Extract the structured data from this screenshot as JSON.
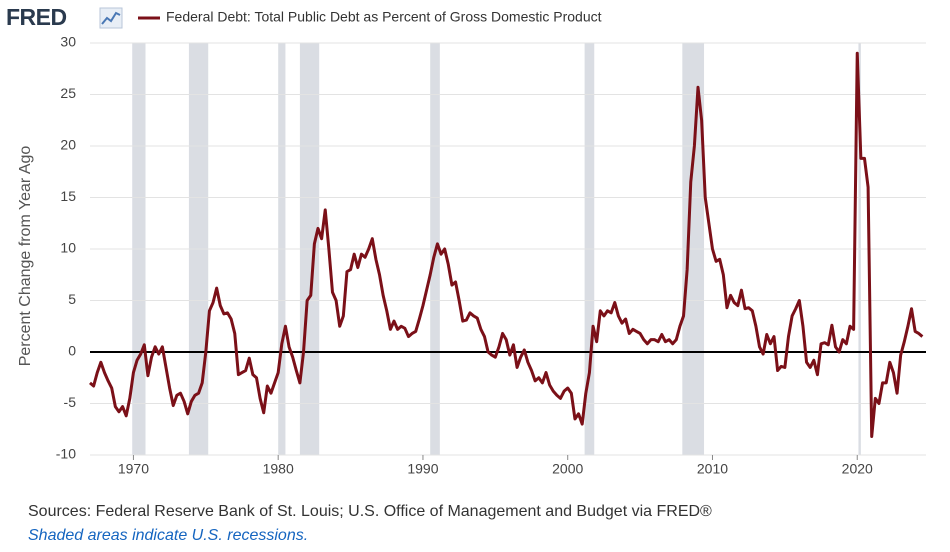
{
  "chart_data": {
    "type": "line",
    "logo": "FRED",
    "sources": "Sources: Federal Reserve Bank of St. Louis; U.S. Office of Management and Budget via FRED®",
    "note": "Shaded areas indicate U.S. recessions.",
    "ylabel": "Percent Change from Year Ago",
    "xlim": [
      1967,
      2024.75
    ],
    "ylim": [
      -10,
      30
    ],
    "xticks": [
      1970,
      1980,
      1990,
      2000,
      2010,
      2020
    ],
    "yticks": [
      30,
      25,
      20,
      15,
      10,
      5,
      0,
      -5,
      -10
    ],
    "grid": true,
    "recession_color": "#dadde3",
    "recessions": [
      [
        1969.917,
        1970.833
      ],
      [
        1973.833,
        1975.167
      ],
      [
        1980.0,
        1980.5
      ],
      [
        1981.5,
        1982.833
      ],
      [
        1990.5,
        1991.167
      ],
      [
        2001.167,
        2001.833
      ],
      [
        2007.917,
        2009.417
      ],
      [
        2020.083,
        2020.25
      ]
    ],
    "x": [
      1967,
      1967.25,
      1967.5,
      1967.75,
      1968,
      1968.25,
      1968.5,
      1968.75,
      1969,
      1969.25,
      1969.5,
      1969.75,
      1970,
      1970.25,
      1970.5,
      1970.75,
      1971,
      1971.25,
      1971.5,
      1971.75,
      1972,
      1972.25,
      1972.5,
      1972.75,
      1973,
      1973.25,
      1973.5,
      1973.75,
      1974,
      1974.25,
      1974.5,
      1974.75,
      1975,
      1975.25,
      1975.5,
      1975.75,
      1976,
      1976.25,
      1976.5,
      1976.75,
      1977,
      1977.25,
      1977.5,
      1977.75,
      1978,
      1978.25,
      1978.5,
      1978.75,
      1979,
      1979.25,
      1979.5,
      1979.75,
      1980,
      1980.25,
      1980.5,
      1980.75,
      1981,
      1981.25,
      1981.5,
      1981.75,
      1982,
      1982.25,
      1982.5,
      1982.75,
      1983,
      1983.25,
      1983.5,
      1983.75,
      1984,
      1984.25,
      1984.5,
      1984.75,
      1985,
      1985.25,
      1985.5,
      1985.75,
      1986,
      1986.25,
      1986.5,
      1986.75,
      1987,
      1987.25,
      1987.5,
      1987.75,
      1988,
      1988.25,
      1988.5,
      1988.75,
      1989,
      1989.25,
      1989.5,
      1989.75,
      1990,
      1990.25,
      1990.5,
      1990.75,
      1991,
      1991.25,
      1991.5,
      1991.75,
      1992,
      1992.25,
      1992.5,
      1992.75,
      1993,
      1993.25,
      1993.5,
      1993.75,
      1994,
      1994.25,
      1994.5,
      1994.75,
      1995,
      1995.25,
      1995.5,
      1995.75,
      1996,
      1996.25,
      1996.5,
      1996.75,
      1997,
      1997.25,
      1997.5,
      1997.75,
      1998,
      1998.25,
      1998.5,
      1998.75,
      1999,
      1999.25,
      1999.5,
      1999.75,
      2000,
      2000.25,
      2000.5,
      2000.75,
      2001,
      2001.25,
      2001.5,
      2001.75,
      2002,
      2002.25,
      2002.5,
      2002.75,
      2003,
      2003.25,
      2003.5,
      2003.75,
      2004,
      2004.25,
      2004.5,
      2004.75,
      2005,
      2005.25,
      2005.5,
      2005.75,
      2006,
      2006.25,
      2006.5,
      2006.75,
      2007,
      2007.25,
      2007.5,
      2007.75,
      2008,
      2008.25,
      2008.5,
      2008.75,
      2009,
      2009.25,
      2009.5,
      2009.75,
      2010,
      2010.25,
      2010.5,
      2010.75,
      2011,
      2011.25,
      2011.5,
      2011.75,
      2012,
      2012.25,
      2012.5,
      2012.75,
      2013,
      2013.25,
      2013.5,
      2013.75,
      2014,
      2014.25,
      2014.5,
      2014.75,
      2015,
      2015.25,
      2015.5,
      2015.75,
      2016,
      2016.25,
      2016.5,
      2016.75,
      2017,
      2017.25,
      2017.5,
      2017.75,
      2018,
      2018.25,
      2018.5,
      2018.75,
      2019,
      2019.25,
      2019.5,
      2019.75,
      2020,
      2020.25,
      2020.5,
      2020.75,
      2021,
      2021.25,
      2021.5,
      2021.75,
      2022,
      2022.25,
      2022.5,
      2022.75,
      2023,
      2023.25,
      2023.5,
      2023.75,
      2024,
      2024.25,
      2024.5
    ],
    "series": [
      {
        "name": "Federal Debt: Total Public Debt as Percent of Gross Domestic Product",
        "color": "#7b1018",
        "values": [
          -3,
          -3.3,
          -2,
          -1,
          -2,
          -2.8,
          -3.5,
          -5.3,
          -5.8,
          -5.3,
          -6.2,
          -4.5,
          -2,
          -0.8,
          -0.2,
          0.7,
          -2.3,
          -0.5,
          0.5,
          -0.2,
          0.5,
          -1.5,
          -3.5,
          -5.2,
          -4.2,
          -4,
          -4.8,
          -6,
          -4.8,
          -4.2,
          -4,
          -3,
          0,
          4,
          4.8,
          6.2,
          4.5,
          3.7,
          3.8,
          3.2,
          1.8,
          -2.2,
          -2,
          -1.8,
          -0.6,
          -2.2,
          -2.5,
          -4.5,
          -5.9,
          -3.3,
          -4,
          -3,
          -2,
          0.8,
          2.5,
          0.5,
          -0.5,
          -1.8,
          -3,
          0,
          5,
          5.5,
          10.5,
          12,
          11,
          13.8,
          10,
          5.8,
          5,
          2.5,
          3.5,
          7.8,
          8,
          9.5,
          8.2,
          9.5,
          9.2,
          10,
          11,
          9,
          7.5,
          5.5,
          4,
          2.2,
          3,
          2.2,
          2.5,
          2.3,
          1.5,
          1.8,
          2,
          3.2,
          4.5,
          6,
          7.5,
          9.2,
          10.5,
          9.5,
          10,
          8.5,
          6.5,
          6.8,
          5,
          3,
          3.1,
          3.8,
          3.5,
          3.3,
          2.2,
          1.5,
          0,
          -0.3,
          -0.5,
          0.5,
          1.8,
          1.2,
          -0.3,
          0.7,
          -1.5,
          -0.5,
          0.2,
          -1,
          -1.8,
          -2.8,
          -2.5,
          -3,
          -2,
          -3.2,
          -3.8,
          -4.2,
          -4.5,
          -3.8,
          -3.5,
          -4,
          -6.5,
          -6,
          -7,
          -4,
          -2,
          2.5,
          1,
          4,
          3.5,
          4,
          3.8,
          4.8,
          3.5,
          2.8,
          3.2,
          1.8,
          2.2,
          2,
          1.8,
          1.2,
          0.8,
          1.2,
          1.2,
          1,
          1.7,
          1,
          1.2,
          0.8,
          1.2,
          2.5,
          3.5,
          8,
          16.5,
          20,
          25.7,
          22.5,
          15,
          12.5,
          10,
          8.8,
          9,
          7.5,
          4.3,
          5.5,
          4.8,
          4.5,
          6,
          4.2,
          4.3,
          4,
          2.5,
          0.5,
          -0.2,
          1.7,
          0.8,
          1.5,
          -1.8,
          -1.4,
          -1.5,
          1.5,
          3.5,
          4.2,
          5,
          2.5,
          -1,
          -1.5,
          -0.8,
          -2.2,
          0.8,
          0.9,
          0.7,
          2.6,
          0.5,
          0,
          1.2,
          0.8,
          2.5,
          2.2,
          29,
          18.8,
          18.8,
          16,
          -8.2,
          -4.5,
          -5,
          -3,
          -3,
          -1,
          -2,
          -4,
          -0.3,
          1,
          2.5,
          4.2,
          2,
          1.8,
          1.5
        ]
      }
    ]
  }
}
